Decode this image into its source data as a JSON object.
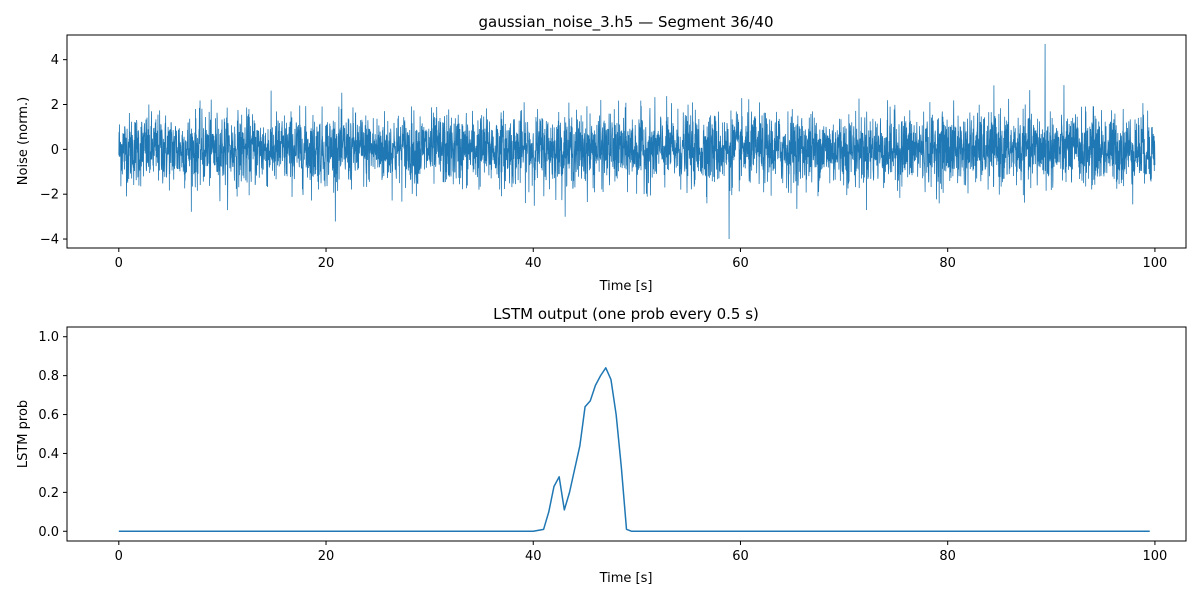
{
  "chart_data": [
    {
      "type": "line",
      "title": "gaussian_noise_3.h5 — Segment 36/40",
      "xlabel": "Time [s]",
      "ylabel": "Noise (norm.)",
      "xlim": [
        -5,
        103
      ],
      "ylim": [
        -4.4,
        5.1
      ],
      "xticks": [
        0,
        20,
        40,
        60,
        80,
        100
      ],
      "yticks": [
        -4,
        -2,
        0,
        2,
        4
      ],
      "grid": false,
      "color": "#1f77b4",
      "signal": {
        "kind": "gaussian noise",
        "x_start": 0,
        "x_end": 100,
        "mean": 0,
        "std": 0.8,
        "max_value": 4.7,
        "max_at": 89.4,
        "min_value": -4.0,
        "min_at": 58.9
      }
    },
    {
      "type": "line",
      "title": "LSTM output (one prob every 0.5 s)",
      "xlabel": "Time [s]",
      "ylabel": "LSTM prob",
      "xlim": [
        -5,
        103
      ],
      "ylim": [
        -0.05,
        1.05
      ],
      "xticks": [
        0,
        20,
        40,
        60,
        80,
        100
      ],
      "yticks": [
        0.0,
        0.2,
        0.4,
        0.6,
        0.8,
        1.0
      ],
      "grid": false,
      "color": "#1f77b4",
      "x": [
        0,
        40,
        41,
        41.5,
        42,
        42.5,
        43,
        43.5,
        44,
        44.5,
        45,
        45.5,
        46,
        46.5,
        47,
        47.5,
        48,
        48.5,
        49,
        49.5,
        50,
        99.5
      ],
      "y": [
        0,
        0,
        0.01,
        0.1,
        0.23,
        0.28,
        0.11,
        0.2,
        0.32,
        0.44,
        0.64,
        0.67,
        0.75,
        0.8,
        0.84,
        0.78,
        0.6,
        0.33,
        0.01,
        0.0,
        0.0,
        0.0
      ]
    }
  ]
}
